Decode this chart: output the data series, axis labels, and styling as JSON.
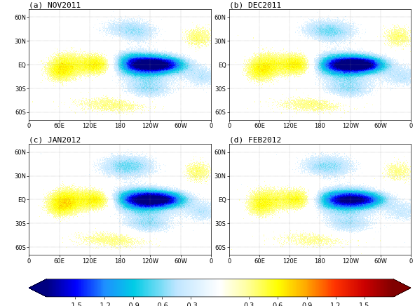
{
  "panels": [
    {
      "label": "(a)",
      "title": "NOV2011"
    },
    {
      "label": "(b)",
      "title": "DEC2011"
    },
    {
      "label": "(c)",
      "title": "JAN2012"
    },
    {
      "label": "(d)",
      "title": "FEB2012"
    }
  ],
  "colorbar_ticks": [
    -1.5,
    -1.2,
    -0.9,
    -0.6,
    -0.3,
    0.3,
    0.6,
    0.9,
    1.2,
    1.5
  ],
  "colorbar_ticklabels": [
    "-1.5",
    "-1.2",
    "-0.9",
    "-0.6",
    "-0.3",
    "0.3",
    "0.6",
    "0.9",
    "1.2",
    "1.5"
  ],
  "lon_ticks": [
    0,
    60,
    120,
    180,
    240,
    300,
    360
  ],
  "lon_labels": [
    "0",
    "60E",
    "120E",
    "180",
    "120W",
    "60W",
    "0"
  ],
  "lat_ticks": [
    -60,
    -30,
    0,
    30,
    60
  ],
  "lat_labels": [
    "60S",
    "30S",
    "EQ",
    "30N",
    "60N"
  ],
  "title_fontsize": 8,
  "tick_fontsize": 6,
  "colorbar_label_fontsize": 7,
  "background_color": "#ffffff",
  "vmin": -1.8,
  "vmax": 1.8
}
